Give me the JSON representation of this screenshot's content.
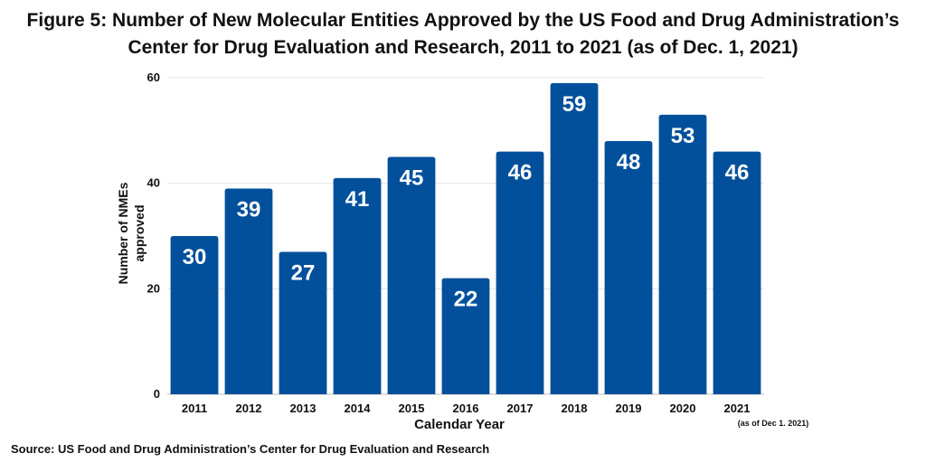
{
  "title": {
    "line1": "Figure 5: Number of New Molecular Entities Approved by the US Food and Drug Administration’s",
    "line2": "Center for Drug Evaluation and Research, 2011 to 2021 (as of Dec. 1, 2021)"
  },
  "source": "Source: US Food and Drug Administration’s Center for Drug Evaluation and Research",
  "colors": {
    "bar": "#02509b",
    "grid": "#e3e3e3",
    "label": "#ffffff"
  },
  "chart_data": {
    "type": "bar",
    "categories": [
      "2011",
      "2012",
      "2013",
      "2014",
      "2015",
      "2016",
      "2017",
      "2018",
      "2019",
      "2020",
      "2021"
    ],
    "values": [
      30,
      39,
      27,
      41,
      45,
      22,
      46,
      59,
      48,
      53,
      46
    ],
    "category_note": {
      "category": "2021",
      "text": "(as of Dec 1. 2021)"
    },
    "ylabel_lines": [
      "Number of NMEs",
      "approved"
    ],
    "xlabel": "Calendar Year",
    "ylim": [
      0,
      60
    ],
    "yticks": [
      0,
      20,
      40,
      60
    ],
    "grid": true,
    "data_labels": true
  }
}
